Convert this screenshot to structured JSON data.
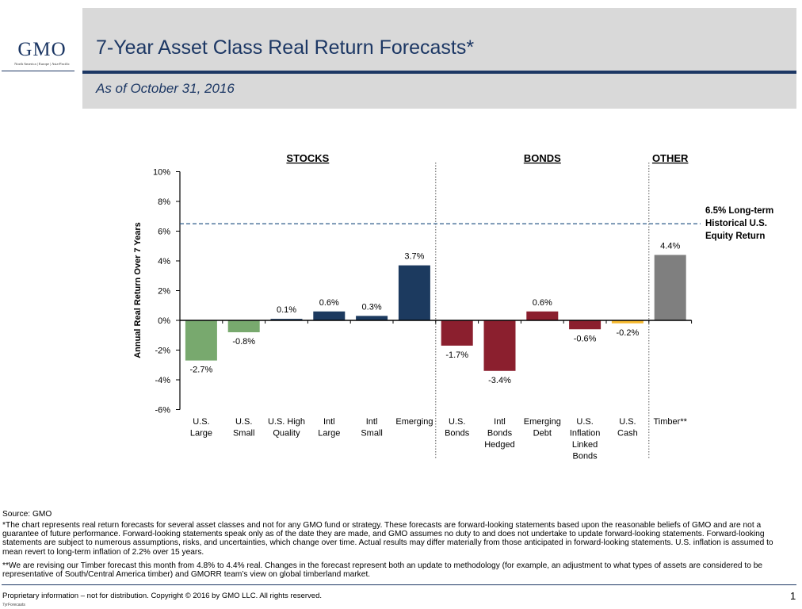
{
  "logo": {
    "name": "GMO",
    "regions": "North America | Europe | Asia-Pacific"
  },
  "header": {
    "title": "7-Year Asset Class Real Return Forecasts*",
    "subtitle": "As of October 31, 2016"
  },
  "chart_data": {
    "type": "bar",
    "ylabel": "Annual Real Return Over 7 Years",
    "ylim": [
      -6,
      10
    ],
    "yticks": [
      -6,
      -4,
      -2,
      0,
      2,
      4,
      6,
      8,
      10
    ],
    "ytick_labels": [
      "-6%",
      "-4%",
      "-2%",
      "0%",
      "2%",
      "4%",
      "6%",
      "8%",
      "10%"
    ],
    "grid": false,
    "groups": [
      {
        "label": "STOCKS",
        "start": 0,
        "end": 5
      },
      {
        "label": "BONDS",
        "start": 6,
        "end": 10
      },
      {
        "label": "OTHER",
        "start": 11,
        "end": 11
      }
    ],
    "categories": [
      [
        "U.S.",
        "Large"
      ],
      [
        "U.S.",
        "Small"
      ],
      [
        "U.S. High",
        "Quality"
      ],
      [
        "Intl",
        "Large"
      ],
      [
        "Intl",
        "Small"
      ],
      [
        "Emerging"
      ],
      [
        "U.S.",
        "Bonds"
      ],
      [
        "Intl",
        "Bonds",
        "Hedged"
      ],
      [
        "Emerging",
        "Debt"
      ],
      [
        "U.S.",
        "Inflation",
        "Linked",
        "Bonds"
      ],
      [
        "U.S.",
        "Cash"
      ],
      [
        "Timber**"
      ]
    ],
    "values": [
      -2.7,
      -0.8,
      0.1,
      0.6,
      0.3,
      3.7,
      -1.7,
      -3.4,
      0.6,
      -0.6,
      -0.2,
      4.4
    ],
    "value_labels": [
      "-2.7%",
      "-0.8%",
      "0.1%",
      "0.6%",
      "0.3%",
      "3.7%",
      "-1.7%",
      "-3.4%",
      "0.6%",
      "-0.6%",
      "-0.2%",
      "4.4%"
    ],
    "colors": [
      "#78a96e",
      "#78a96e",
      "#1c3a5f",
      "#1c3a5f",
      "#1c3a5f",
      "#1c3a5f",
      "#8b1f2e",
      "#8b1f2e",
      "#8b1f2e",
      "#8b1f2e",
      "#f5b82e",
      "#7f7f7f"
    ],
    "reference_line": {
      "value": 6.5,
      "color": "#2e5c8a",
      "label": [
        "6.5% Long-term",
        "Historical U.S.",
        "Equity Return"
      ]
    }
  },
  "footer": {
    "source": "Source: GMO",
    "note1": "*The chart represents real return forecasts for several asset classes and not for any GMO fund or strategy.  These forecasts are forward-looking statements based upon the reasonable beliefs of GMO and are not a guarantee of future performance.  Forward-looking statements speak only as of the date they are made, and GMO assumes no duty to and does not undertake to update forward-looking statements.  Forward-looking statements are subject to numerous assumptions, risks, and uncertainties, which change over time.  Actual results may differ materially from those anticipated in forward-looking statements. U.S. inflation is assumed to mean revert to long-term inflation of 2.2% over 15 years.",
    "note2": "**We are revising our Timber forecast this month from 4.8% to 4.4% real. Changes in the forecast represent both an update to methodology (for example, an adjustment to what types of assets are considered to be representative of South/Central America timber) and GMORR team’s view on global timberland market.",
    "copyright": "Proprietary information – not for distribution.  Copyright © 2016 by GMO LLC.  All rights reserved.",
    "page_number": "1",
    "filename": "7yrForecasts"
  }
}
